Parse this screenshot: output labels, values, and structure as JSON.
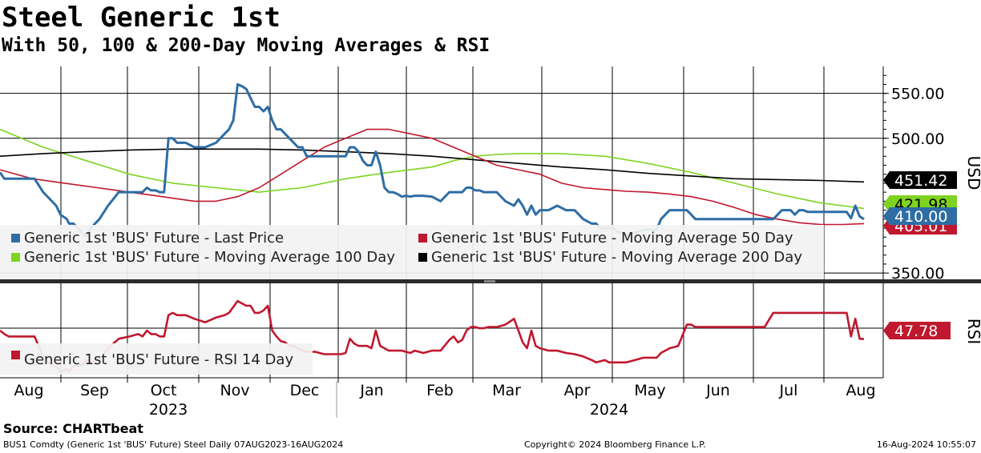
{
  "title": "Steel Generic 1st",
  "subtitle": "With 50, 100 & 200-Day Moving Averages & RSI",
  "source": "Source: CHARTbeat",
  "footer": {
    "left": "BUS1 Comdty (Generic 1st 'BUS' Future) Steel  Daily 07AUG2023-16AUG2024",
    "middle": "Copyright© 2024 Bloomberg Finance L.P.",
    "right": "16-Aug-2024 10:55:07"
  },
  "colors": {
    "price": "#2e6da4",
    "ma50": "#c0182e",
    "ma100": "#7ed321",
    "ma200": "#000000",
    "rsi": "#c0182e",
    "grid": "#000000"
  },
  "chart_data": [
    {
      "type": "line",
      "panel": "price",
      "ylabel": "USD",
      "ylim": [
        343,
        580
      ],
      "ytick_labels": [
        "550.00",
        "500.00",
        "350.00"
      ],
      "ytick_values": [
        550,
        500,
        350
      ],
      "x_months": [
        "Aug",
        "Sep",
        "Oct",
        "Nov",
        "Dec",
        "Jan",
        "Feb",
        "Mar",
        "Apr",
        "May",
        "Jun",
        "Jul",
        "Aug"
      ],
      "x_years": [
        "2023",
        "2024"
      ],
      "last_value_labels": [
        {
          "series": "ma200",
          "text": "451.42",
          "value": 451.42
        },
        {
          "series": "ma100",
          "text": "421.98",
          "value": 421.98
        },
        {
          "series": "price",
          "text": "410.00",
          "value": 410.0
        },
        {
          "series": "ma50",
          "text": "405.01",
          "value": 405.01
        }
      ],
      "legend": [
        {
          "key": "price",
          "label": "Generic 1st 'BUS' Future - Last Price"
        },
        {
          "key": "ma50",
          "label": "Generic 1st 'BUS' Future - Moving Average 50 Day"
        },
        {
          "key": "ma100",
          "label": "Generic 1st 'BUS' Future - Moving Average 100 Day"
        },
        {
          "key": "ma200",
          "label": "Generic 1st 'BUS' Future - Moving Average 200 Day"
        }
      ],
      "series": [
        {
          "name": "Generic 1st 'BUS' Future - Last Price",
          "key": "price",
          "x": [
            0,
            2,
            4,
            8,
            12,
            16,
            20,
            24,
            26,
            28,
            31,
            32,
            34,
            36,
            38,
            40,
            42,
            44,
            46,
            50,
            55,
            60,
            64,
            66,
            68,
            70,
            72,
            74,
            76,
            78,
            80,
            82,
            84,
            86,
            90,
            95,
            100,
            104,
            106,
            108,
            110,
            112,
            114,
            116,
            118,
            120,
            122,
            124,
            126,
            128,
            130,
            132,
            134,
            136,
            138,
            140,
            142,
            146,
            150,
            154,
            158,
            160,
            162,
            164,
            166,
            168,
            170,
            172,
            174,
            176,
            178,
            180,
            182,
            184,
            186,
            188,
            190,
            192,
            196,
            200,
            204,
            208,
            210,
            212,
            214,
            216,
            218,
            220,
            222,
            224,
            226,
            230,
            234,
            238,
            240,
            242,
            244,
            246,
            248,
            250,
            254,
            258,
            262,
            266,
            270,
            274,
            276,
            278,
            280,
            282,
            284,
            286,
            288,
            290,
            294,
            298,
            302,
            304,
            306,
            310,
            314,
            318,
            320,
            322,
            324,
            326,
            328,
            330,
            334,
            338,
            342,
            346,
            350,
            354,
            358,
            362,
            364,
            366,
            368,
            370,
            372,
            374,
            376,
            378,
            380,
            384,
            388,
            390,
            392,
            394,
            396,
            398,
            400
          ],
          "values": [
            462,
            455,
            455,
            455,
            455,
            455,
            440,
            430,
            425,
            415,
            410,
            405,
            405,
            400,
            395,
            390,
            400,
            405,
            410,
            425,
            440,
            440,
            440,
            440,
            445,
            442,
            442,
            440,
            440,
            500,
            500,
            495,
            495,
            495,
            490,
            490,
            495,
            505,
            510,
            520,
            560,
            558,
            555,
            545,
            535,
            535,
            530,
            535,
            520,
            510,
            510,
            505,
            500,
            495,
            490,
            490,
            480,
            480,
            480,
            480,
            480,
            480,
            490,
            490,
            485,
            475,
            470,
            470,
            485,
            470,
            445,
            440,
            440,
            438,
            435,
            436,
            435,
            436,
            436,
            435,
            430,
            440,
            440,
            440,
            440,
            445,
            445,
            442,
            442,
            440,
            440,
            440,
            430,
            425,
            432,
            425,
            415,
            425,
            415,
            420,
            420,
            425,
            420,
            420,
            410,
            405,
            405,
            400,
            400,
            400,
            400,
            395,
            395,
            392,
            395,
            398,
            398,
            398,
            410,
            420,
            420,
            420,
            415,
            410,
            410,
            410,
            410,
            410,
            410,
            410,
            410,
            410,
            410,
            410,
            410,
            420,
            420,
            420,
            415,
            420,
            420,
            418,
            418,
            418,
            418,
            418,
            418,
            418,
            418,
            411,
            425,
            413,
            410
          ]
        },
        {
          "name": "Generic 1st 'BUS' Future - Moving Average 50 Day",
          "key": "ma50",
          "x": [
            0,
            15,
            30,
            45,
            60,
            75,
            90,
            100,
            110,
            120,
            130,
            140,
            150,
            160,
            170,
            180,
            190,
            200,
            210,
            220,
            230,
            240,
            250,
            260,
            270,
            280,
            290,
            300,
            310,
            320,
            330,
            340,
            350,
            360,
            370,
            380,
            390,
            400
          ],
          "values": [
            465,
            455,
            450,
            445,
            440,
            435,
            430,
            430,
            435,
            445,
            460,
            475,
            490,
            500,
            510,
            510,
            505,
            500,
            490,
            480,
            470,
            465,
            460,
            450,
            445,
            443,
            441,
            440,
            438,
            435,
            430,
            423,
            415,
            410,
            406,
            404,
            404,
            405.01
          ]
        },
        {
          "name": "Generic 1st 'BUS' Future - Moving Average 100 Day",
          "key": "ma100",
          "x": [
            0,
            20,
            40,
            60,
            80,
            100,
            120,
            140,
            160,
            180,
            200,
            210,
            220,
            230,
            240,
            260,
            280,
            300,
            320,
            340,
            360,
            380,
            400
          ],
          "values": [
            510,
            490,
            475,
            460,
            450,
            445,
            440,
            445,
            455,
            462,
            468,
            475,
            480,
            482,
            483,
            483,
            480,
            472,
            462,
            450,
            438,
            428,
            421.98
          ]
        },
        {
          "name": "Generic 1st 'BUS' Future - Moving Average 200 Day",
          "key": "ma200",
          "x": [
            0,
            20,
            40,
            60,
            80,
            100,
            120,
            140,
            160,
            180,
            200,
            220,
            240,
            260,
            280,
            300,
            320,
            340,
            360,
            380,
            400
          ],
          "values": [
            480,
            483,
            485,
            487,
            488,
            488,
            488,
            487,
            485,
            483,
            480,
            476,
            472,
            468,
            465,
            461,
            458,
            455,
            454,
            453,
            451.42
          ]
        }
      ]
    },
    {
      "type": "line",
      "panel": "rsi",
      "ylabel": "RSI",
      "ylim": [
        15,
        95
      ],
      "last_value_label": {
        "text": "47.78",
        "value": 47.78
      },
      "legend": [
        {
          "key": "rsi",
          "label": "Generic 1st 'BUS' Future - RSI 14 Day"
        }
      ],
      "series": [
        {
          "name": "Generic 1st 'BUS' Future - RSI 14 Day",
          "key": "rsi",
          "x": [
            0,
            2,
            4,
            8,
            12,
            16,
            20,
            24,
            26,
            28,
            31,
            32,
            34,
            36,
            38,
            40,
            42,
            44,
            46,
            50,
            55,
            60,
            64,
            66,
            68,
            70,
            72,
            74,
            76,
            78,
            80,
            82,
            84,
            86,
            90,
            95,
            100,
            104,
            106,
            108,
            110,
            112,
            114,
            116,
            118,
            120,
            122,
            124,
            126,
            128,
            130,
            132,
            134,
            136,
            138,
            140,
            142,
            146,
            150,
            154,
            158,
            160,
            162,
            164,
            166,
            168,
            170,
            172,
            174,
            176,
            178,
            180,
            182,
            184,
            186,
            188,
            190,
            192,
            196,
            200,
            204,
            208,
            210,
            212,
            214,
            216,
            218,
            220,
            222,
            224,
            226,
            230,
            234,
            238,
            240,
            242,
            244,
            246,
            248,
            250,
            254,
            258,
            262,
            266,
            270,
            274,
            276,
            278,
            280,
            282,
            284,
            286,
            288,
            290,
            294,
            298,
            302,
            304,
            306,
            310,
            314,
            318,
            320,
            322,
            324,
            326,
            328,
            330,
            334,
            338,
            342,
            346,
            350,
            354,
            358,
            362,
            364,
            366,
            368,
            370,
            372,
            374,
            376,
            378,
            380,
            384,
            388,
            390,
            392,
            394,
            396,
            398,
            400
          ],
          "values": [
            55,
            52,
            50,
            50,
            50,
            50,
            33,
            25,
            25,
            20,
            22,
            20,
            25,
            25,
            26,
            30,
            28,
            30,
            30,
            40,
            48,
            50,
            52,
            50,
            55,
            52,
            52,
            50,
            50,
            68,
            70,
            68,
            68,
            68,
            65,
            62,
            66,
            68,
            70,
            75,
            80,
            78,
            76,
            76,
            70,
            70,
            72,
            76,
            55,
            50,
            46,
            45,
            42,
            42,
            40,
            38,
            37,
            37,
            35,
            35,
            35,
            36,
            48,
            44,
            42,
            42,
            42,
            40,
            55,
            42,
            40,
            38,
            38,
            38,
            38,
            37,
            36,
            38,
            36,
            38,
            38,
            47,
            50,
            45,
            47,
            55,
            58,
            58,
            57,
            57,
            58,
            58,
            60,
            65,
            55,
            45,
            40,
            55,
            42,
            40,
            38,
            38,
            36,
            35,
            33,
            30,
            28,
            29,
            30,
            28,
            28,
            28,
            28,
            28,
            30,
            32,
            32,
            32,
            36,
            40,
            42,
            60,
            60,
            58,
            58,
            58,
            58,
            58,
            58,
            58,
            58,
            58,
            58,
            58,
            70,
            70,
            70,
            70,
            70,
            70,
            70,
            70,
            70,
            70,
            70,
            70,
            70,
            70,
            70,
            50,
            65,
            48,
            47.78
          ]
        }
      ]
    }
  ]
}
